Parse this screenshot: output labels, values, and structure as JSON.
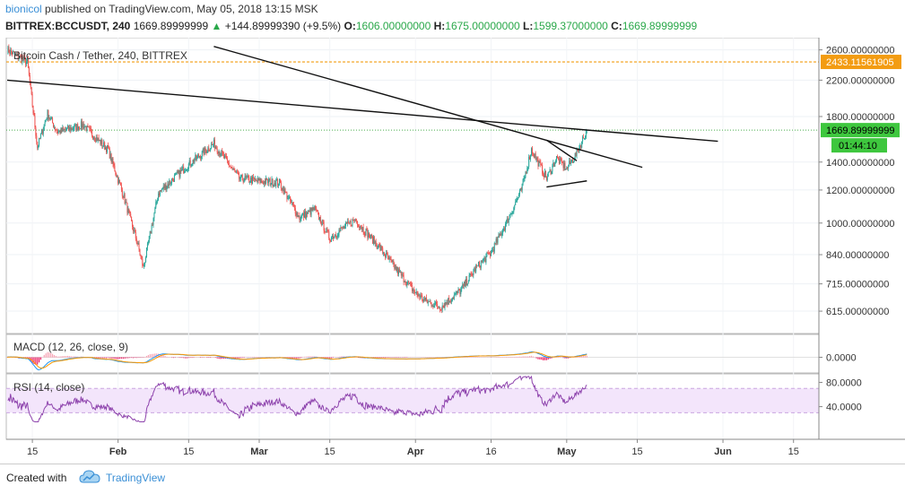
{
  "header": {
    "author": "bionicol",
    "published_text": "published on TradingView.com, May 05, 2018 13:15 MSK",
    "symbol": "BITTREX:BCCUSDT, 240",
    "last": "1669.89999999",
    "change_arrow": "▲",
    "change": "+144.89999390 (+9.5%)",
    "o_label": "O:",
    "o_value": "1606.00000000",
    "h_label": "H:",
    "h_value": "1675.00000000",
    "l_label": "L:",
    "l_value": "1599.37000000",
    "c_label": "C:",
    "c_value": "1669.89999999"
  },
  "footer": {
    "created_with": "Created with",
    "brand": "TradingView",
    "logo_icon": "tradingview-cloud-icon"
  },
  "colors": {
    "up": "#26a69a",
    "down": "#ef5350",
    "macd": "#2196f3",
    "signal": "#ff9800",
    "rsi": "#8e44ad",
    "price_line": "#4caf50",
    "highlight": "#f39c12"
  },
  "chart_data": [
    {
      "type": "candlestick",
      "title": "Bitcoin Cash / Tether, 240, BITTREX",
      "y_scale": "log",
      "ylim": [
        560,
        2700
      ],
      "y_ticks": [
        "2600.00000000",
        "2200.00000000",
        "1800.00000000",
        "1400.00000000",
        "1200.00000000",
        "1000.00000000",
        "840.00000000",
        "715.00000000",
        "615.00000000"
      ],
      "x_ticks": [
        "15",
        "Feb",
        "15",
        "Mar",
        "15",
        "Apr",
        "16",
        "May",
        "15",
        "Jun",
        "15"
      ],
      "price_label": "1669.89999999",
      "countdown_label": "01:44:10",
      "highlight_label": "2433.11561905",
      "key_points": [
        [
          "Jan 10",
          2600
        ],
        [
          "Jan 14",
          2430
        ],
        [
          "Jan 16",
          1520
        ],
        [
          "Jan 18",
          1830
        ],
        [
          "Jan 20",
          1650
        ],
        [
          "Jan 25",
          1720
        ],
        [
          "Jan 30",
          1500
        ],
        [
          "Feb 2",
          1170
        ],
        [
          "Feb 5",
          880
        ],
        [
          "Feb 6",
          780
        ],
        [
          "Feb 9",
          1180
        ],
        [
          "Feb 12",
          1280
        ],
        [
          "Feb 15",
          1380
        ],
        [
          "Feb 20",
          1550
        ],
        [
          "Feb 25",
          1280
        ],
        [
          "Mar 1",
          1260
        ],
        [
          "Mar 5",
          1250
        ],
        [
          "Mar 9",
          1030
        ],
        [
          "Mar 12",
          1080
        ],
        [
          "Mar 15",
          920
        ],
        [
          "Mar 20",
          1020
        ],
        [
          "Mar 25",
          870
        ],
        [
          "Mar 28",
          780
        ],
        [
          "Apr 1",
          680
        ],
        [
          "Apr 3",
          650
        ],
        [
          "Apr 6",
          630
        ],
        [
          "Apr 10",
          690
        ],
        [
          "Apr 13",
          780
        ],
        [
          "Apr 16",
          850
        ],
        [
          "Apr 19",
          1000
        ],
        [
          "Apr 22",
          1200
        ],
        [
          "Apr 24",
          1500
        ],
        [
          "Apr 27",
          1280
        ],
        [
          "Apr 29",
          1430
        ],
        [
          "May 1",
          1350
        ],
        [
          "May 3",
          1470
        ],
        [
          "May 5",
          1669.9
        ]
      ]
    },
    {
      "type": "line",
      "title": "MACD (12, 26, close, 9)",
      "y_ticks": [
        "0.0000"
      ]
    },
    {
      "type": "line",
      "title": "RSI (14, close)",
      "y_ticks": [
        "80.0000",
        "40.0000"
      ],
      "band": [
        30,
        70
      ]
    }
  ]
}
